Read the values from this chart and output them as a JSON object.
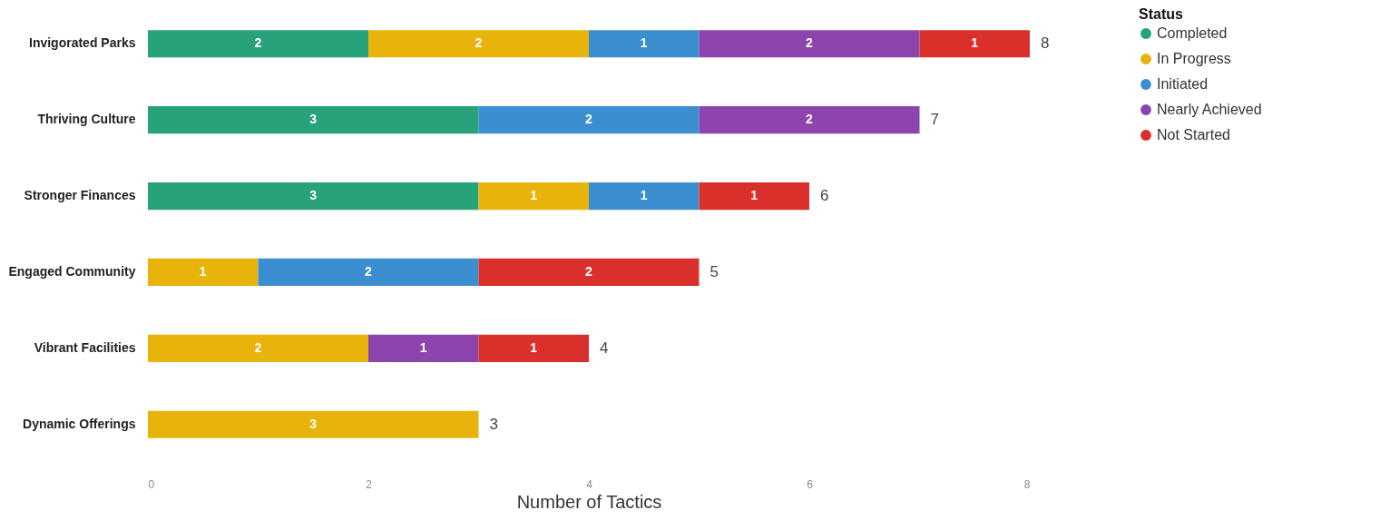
{
  "chart_data": {
    "type": "bar",
    "orientation": "horizontal",
    "stacked": true,
    "data_labels": true,
    "xlabel": "Number of Tactics",
    "legend_title": "Status",
    "legend": "right",
    "grid": false,
    "categories": [
      "Invigorated Parks",
      "Thriving Culture",
      "Stronger Finances",
      "Engaged Community",
      "Vibrant Facilities",
      "Dynamic Offerings"
    ],
    "series": [
      {
        "name": "Completed",
        "color": "#27a27a",
        "values": [
          2,
          3,
          3,
          null,
          null,
          null
        ]
      },
      {
        "name": "In Progress",
        "color": "#e8b40c",
        "values": [
          2,
          null,
          1,
          1,
          2,
          3
        ]
      },
      {
        "name": "Initiated",
        "color": "#3b8fd0",
        "values": [
          1,
          2,
          1,
          2,
          null,
          null
        ]
      },
      {
        "name": "Nearly Achieved",
        "color": "#8e44ad",
        "values": [
          2,
          2,
          null,
          null,
          1,
          null
        ]
      },
      {
        "name": "Not Started",
        "color": "#d9302b",
        "values": [
          1,
          null,
          1,
          2,
          1,
          null
        ]
      }
    ],
    "totals": [
      "8",
      "7",
      "6",
      "5",
      "4",
      "3"
    ],
    "xlim": [
      0,
      8
    ],
    "xticks": [
      0,
      2,
      4,
      6,
      8
    ]
  }
}
